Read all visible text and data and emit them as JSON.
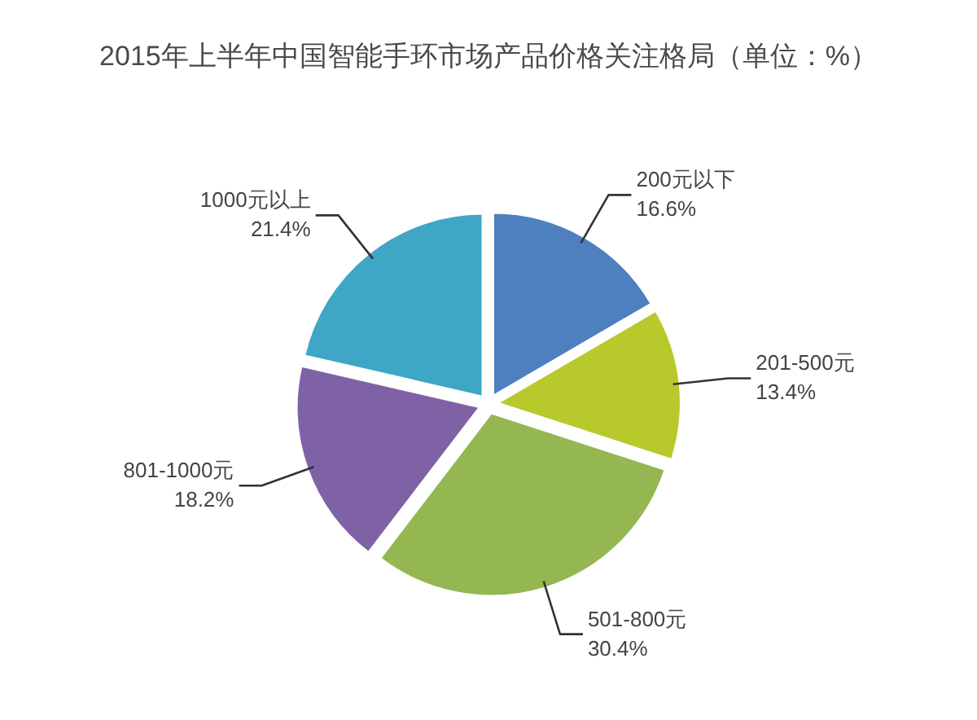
{
  "chart_data": {
    "type": "pie",
    "title": "2015年上半年中国智能手环市场产品价格关注格局（单位：%）",
    "categories": [
      "200元以下",
      "201-500元",
      "501-800元",
      "801-1000元",
      "1000元以上"
    ],
    "values": [
      16.6,
      13.4,
      30.4,
      18.2,
      21.4
    ],
    "colors": [
      "#4e7fbf",
      "#b8c92c",
      "#94b752",
      "#7f62a6",
      "#3fa6c6"
    ],
    "value_labels": [
      "16.6%",
      "13.4%",
      "30.4%",
      "18.2%",
      "21.4%"
    ]
  }
}
